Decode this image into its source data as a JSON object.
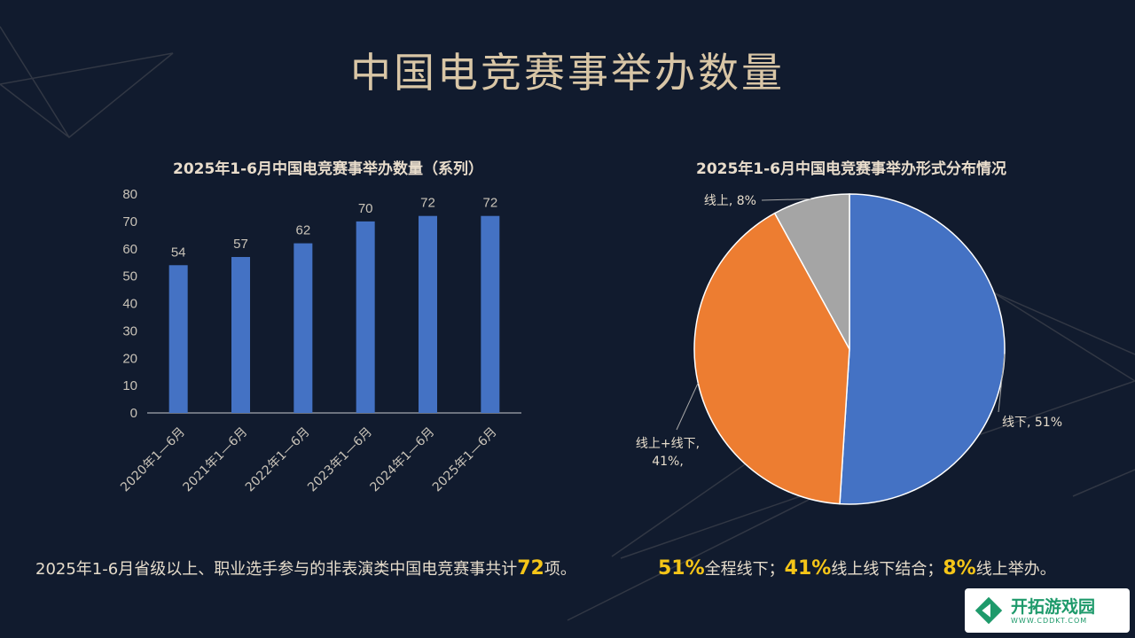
{
  "page": {
    "title": "中国电竞赛事举办数量"
  },
  "captions": {
    "left": {
      "prefix": "2025年1-6月省级以上、职业选手参与的非表演类中国电竞赛事共计",
      "highlight": "72",
      "suffix": "项。"
    },
    "right": {
      "p1": "51%",
      "t1": "全程线下；",
      "p2": "41%",
      "t2": "线上线下结合；",
      "p3": "8%",
      "t3": "线上举办。"
    }
  },
  "watermark": {
    "name": "开拓游戏园",
    "url": "WWW.CDDKT.COM"
  },
  "colors": {
    "background": "#111b2e",
    "title": "#d9c6a6",
    "highlight": "#f5c518",
    "bar": "#4472c4"
  },
  "chart_data": [
    {
      "type": "bar",
      "title": "2025年1-6月中国电竞赛事举办数量（系列）",
      "categories": [
        "2020年1—6月",
        "2021年1—6月",
        "2022年1—6月",
        "2023年1—6月",
        "2024年1—6月",
        "2025年1—6月"
      ],
      "values": [
        54,
        57,
        62,
        70,
        72,
        72
      ],
      "ylim": [
        0,
        80
      ],
      "yticks": [
        0,
        10,
        20,
        30,
        40,
        50,
        60,
        70,
        80
      ],
      "data_labels": true,
      "grid": false,
      "color": "#4472c4"
    },
    {
      "type": "pie",
      "title": "2025年1-6月中国电竞赛事举办形式分布情况",
      "slices": [
        {
          "label": "线下, 51%",
          "value": 51,
          "color": "#4472c4"
        },
        {
          "label": "线上+线下, 41%,",
          "value": 41,
          "color": "#ed7d31"
        },
        {
          "label": "线上, 8%",
          "value": 8,
          "color": "#a5a5a5"
        }
      ],
      "start": "12 o'clock",
      "direction": "clockwise"
    }
  ]
}
